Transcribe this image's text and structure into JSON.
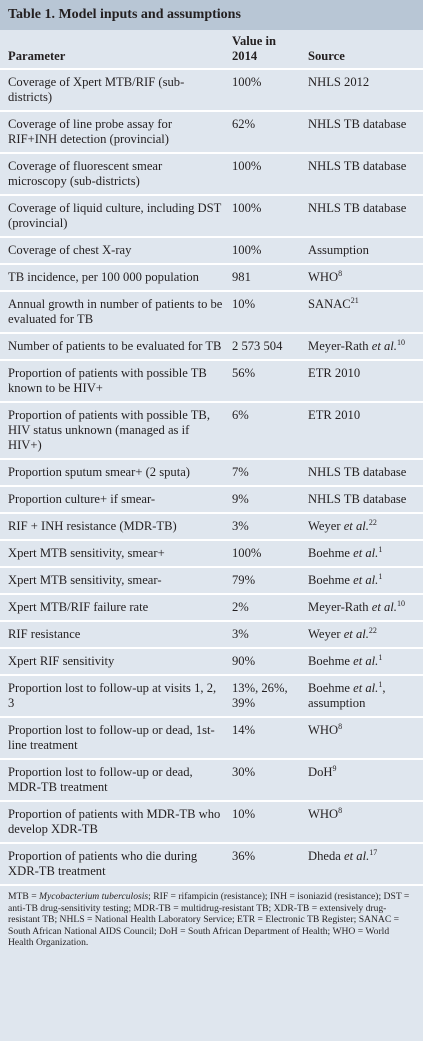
{
  "table": {
    "title": "Table 1. Model inputs and assumptions",
    "header": [
      "Parameter",
      "Value in 2014",
      "Source"
    ],
    "rows": [
      {
        "parameter": "Coverage of Xpert MTB/RIF (sub-districts)",
        "value": "100%",
        "source": [
          {
            "text": "NHLS 2012"
          }
        ]
      },
      {
        "parameter": "Coverage of line probe assay for RIF+INH detection (provincial)",
        "value": "62%",
        "source": [
          {
            "text": "NHLS TB database"
          }
        ]
      },
      {
        "parameter": "Coverage of fluorescent smear microscopy (sub-districts)",
        "value": "100%",
        "source": [
          {
            "text": "NHLS TB database"
          }
        ]
      },
      {
        "parameter": "Coverage of liquid culture, including DST (provincial)",
        "value": "100%",
        "source": [
          {
            "text": "NHLS TB database"
          }
        ]
      },
      {
        "parameter": "Coverage of chest X-ray",
        "value": "100%",
        "source": [
          {
            "text": "Assumption"
          }
        ]
      },
      {
        "parameter": "TB incidence, per 100 000 population",
        "value": "981",
        "source": [
          {
            "text": "WHO"
          },
          {
            "text": "8",
            "style": "sup"
          }
        ]
      },
      {
        "parameter": "Annual growth in number of patients to be evaluated for TB",
        "value": "10%",
        "source": [
          {
            "text": "SANAC"
          },
          {
            "text": "21",
            "style": "sup"
          }
        ]
      },
      {
        "parameter": "Number of patients to be evaluated for TB",
        "value": "2 573 504",
        "source": [
          {
            "text": "Meyer-Rath "
          },
          {
            "text": "et al.",
            "style": "italic"
          },
          {
            "text": "10",
            "style": "sup"
          }
        ]
      },
      {
        "parameter": "Proportion of patients with possible TB known to be HIV+",
        "value": "56%",
        "source": [
          {
            "text": "ETR 2010"
          }
        ]
      },
      {
        "parameter": "Proportion of patients with possible TB, HIV status unknown (managed as if HIV+)",
        "value": "6%",
        "source": [
          {
            "text": "ETR 2010"
          }
        ]
      },
      {
        "parameter": "Proportion sputum smear+ (2 sputa)",
        "value": "7%",
        "source": [
          {
            "text": "NHLS TB database"
          }
        ]
      },
      {
        "parameter": "Proportion culture+ if smear-",
        "value": "9%",
        "source": [
          {
            "text": "NHLS TB database"
          }
        ]
      },
      {
        "parameter": "RIF + INH resistance (MDR-TB)",
        "value": "3%",
        "source": [
          {
            "text": "Weyer "
          },
          {
            "text": "et al.",
            "style": "italic"
          },
          {
            "text": "22",
            "style": "sup"
          }
        ]
      },
      {
        "parameter": "Xpert MTB sensitivity, smear+",
        "value": "100%",
        "source": [
          {
            "text": "Boehme "
          },
          {
            "text": "et al.",
            "style": "italic"
          },
          {
            "text": "1",
            "style": "sup"
          }
        ]
      },
      {
        "parameter": "Xpert MTB sensitivity, smear-",
        "value": "79%",
        "source": [
          {
            "text": "Boehme "
          },
          {
            "text": "et al.",
            "style": "italic"
          },
          {
            "text": "1",
            "style": "sup"
          }
        ]
      },
      {
        "parameter": "Xpert MTB/RIF failure rate",
        "value": "2%",
        "source": [
          {
            "text": "Meyer-Rath "
          },
          {
            "text": "et al.",
            "style": "italic"
          },
          {
            "text": "10",
            "style": "sup"
          }
        ]
      },
      {
        "parameter": "RIF resistance",
        "value": "3%",
        "source": [
          {
            "text": "Weyer "
          },
          {
            "text": "et al.",
            "style": "italic"
          },
          {
            "text": "22",
            "style": "sup"
          }
        ]
      },
      {
        "parameter": "Xpert RIF sensitivity",
        "value": "90%",
        "source": [
          {
            "text": "Boehme "
          },
          {
            "text": "et al.",
            "style": "italic"
          },
          {
            "text": "1",
            "style": "sup"
          }
        ]
      },
      {
        "parameter": "Proportion lost to follow-up at visits 1, 2, 3",
        "value": "13%, 26%, 39%",
        "source": [
          {
            "text": "Boehme "
          },
          {
            "text": "et al.",
            "style": "italic"
          },
          {
            "text": "1",
            "style": "sup"
          },
          {
            "text": ", assumption"
          }
        ]
      },
      {
        "parameter": "Proportion lost to follow-up or dead, 1st-line treatment",
        "value": "14%",
        "source": [
          {
            "text": "WHO"
          },
          {
            "text": "8",
            "style": "sup"
          }
        ]
      },
      {
        "parameter": "Proportion lost to follow-up or dead, MDR-TB treatment",
        "value": "30%",
        "source": [
          {
            "text": "DoH"
          },
          {
            "text": "9",
            "style": "sup"
          }
        ]
      },
      {
        "parameter": "Proportion of patients with MDR-TB who develop XDR-TB",
        "value": "10%",
        "source": [
          {
            "text": "WHO"
          },
          {
            "text": "8",
            "style": "sup"
          }
        ]
      },
      {
        "parameter": "Proportion of patients who die during XDR-TB treatment",
        "value": "36%",
        "source": [
          {
            "text": "Dheda "
          },
          {
            "text": "et al.",
            "style": "italic"
          },
          {
            "text": "17",
            "style": "sup"
          }
        ]
      }
    ],
    "footnote": [
      {
        "text": "MTB = "
      },
      {
        "text": "Mycobacterium tuberculosis",
        "style": "italic"
      },
      {
        "text": "; RIF = rifampicin (resistance); INH = isoniazid (resistance); DST = anti-TB drug-sensitivity testing; MDR-TB = multidrug-resistant TB; XDR-TB = extensively drug-resistant TB; NHLS = National Health Laboratory Service; ETR = Electronic TB Register; SANAC = South African National AIDS Council; DoH = South African Department of Health; WHO = World Health Organization."
      }
    ]
  }
}
